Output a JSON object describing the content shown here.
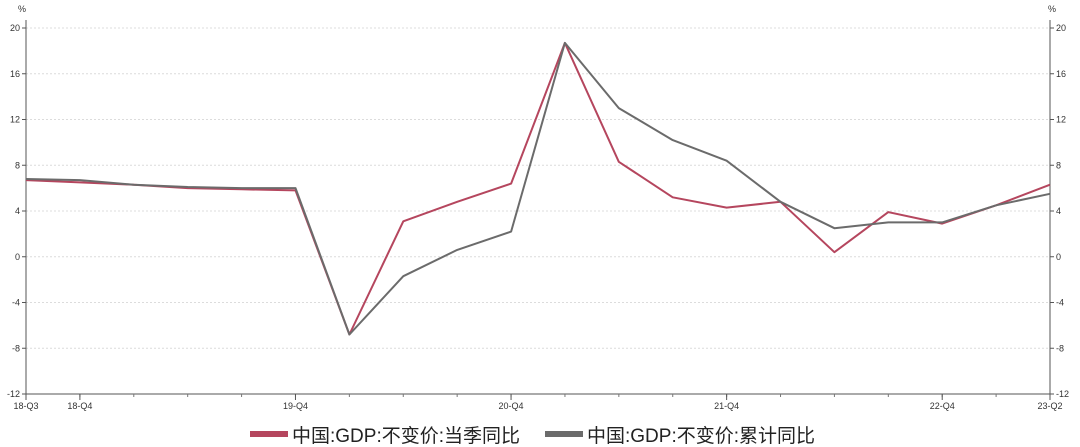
{
  "chart_data": {
    "type": "line",
    "unit_left": "%",
    "unit_right": "%",
    "ylim": [
      -12,
      20
    ],
    "yticks": [
      20,
      16,
      12,
      8,
      4,
      0,
      -4,
      -8,
      -12
    ],
    "x": [
      "18-Q3",
      "18-Q4",
      "19-Q1",
      "19-Q2",
      "19-Q3",
      "19-Q4",
      "20-Q1",
      "20-Q2",
      "20-Q3",
      "20-Q4",
      "21-Q1",
      "21-Q2",
      "21-Q3",
      "21-Q4",
      "22-Q1",
      "22-Q2",
      "22-Q3",
      "22-Q4",
      "23-Q1",
      "23-Q2"
    ],
    "xtick_labels": [
      "18-Q3",
      "18-Q4",
      "19-Q4",
      "20-Q4",
      "21-Q4",
      "22-Q4",
      "23-Q2"
    ],
    "series": [
      {
        "name": "中国:GDP:不变价:当季同比",
        "color": "#b5465e",
        "values": [
          6.7,
          6.5,
          6.3,
          6.0,
          5.9,
          5.8,
          -6.8,
          3.1,
          4.8,
          6.4,
          18.7,
          8.3,
          5.2,
          4.3,
          4.8,
          0.4,
          3.9,
          2.9,
          4.5,
          6.3
        ]
      },
      {
        "name": "中国:GDP:不变价:累计同比",
        "color": "#6b6b6b",
        "values": [
          6.8,
          6.7,
          6.3,
          6.1,
          6.0,
          6.0,
          -6.8,
          -1.7,
          0.6,
          2.2,
          18.7,
          13.0,
          10.2,
          8.4,
          4.8,
          2.5,
          3.0,
          3.0,
          4.5,
          5.5
        ]
      }
    ],
    "grid": true,
    "legend_position": "bottom-center"
  }
}
